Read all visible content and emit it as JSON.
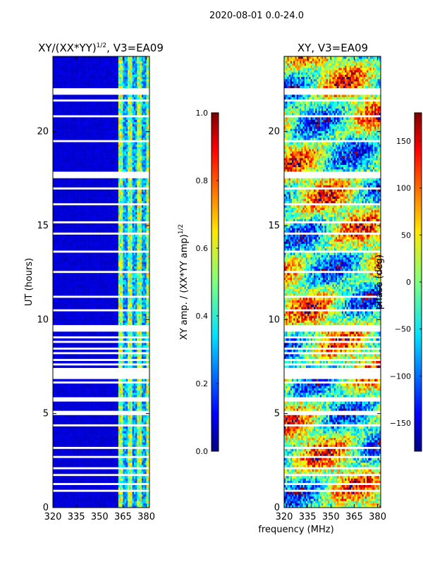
{
  "suptitle": "2020-08-01 0.0-24.0",
  "colormap": "jet",
  "chart_data": [
    {
      "type": "heatmap",
      "title": "XY/(XX*YY)",
      "title_superscript": "1/2",
      "title_suffix": ", V3=EA09",
      "xlabel": "",
      "ylabel": "UT (hours)",
      "xlim": [
        320,
        382
      ],
      "ylim": [
        0,
        24
      ],
      "xticks": [
        320,
        335,
        350,
        365,
        380
      ],
      "yticks": [
        0,
        5,
        10,
        15,
        20
      ],
      "value_description": "normalized XY amplitude; mostly low (~0.05) below 362 MHz, elevated (~0.2-0.7) in banded channels 362-382 MHz",
      "colorbar": {
        "label": "XY amp. / (XX*YY amp)",
        "label_superscript": "1/2",
        "range": [
          0.0,
          1.0
        ],
        "ticks": [
          "0.0",
          "0.2",
          "0.4",
          "0.6",
          "0.8",
          "1.0"
        ]
      }
    },
    {
      "type": "heatmap",
      "title": "XY, V3=EA09",
      "xlabel": "frequency (MHz)",
      "ylabel": "",
      "xlim": [
        320,
        382
      ],
      "ylim": [
        0,
        24
      ],
      "xticks": [
        320,
        335,
        350,
        365,
        380
      ],
      "yticks": [
        0,
        5,
        10,
        15,
        20
      ],
      "value_description": "XY phase in degrees, spanning -180 to 180 with noisy time-frequency structure",
      "colorbar": {
        "label": "phase (deg)",
        "range": [
          -180,
          180
        ],
        "ticks": [
          "−150",
          "−100",
          "−50",
          "0",
          "50",
          "100",
          "150"
        ]
      }
    }
  ],
  "flagged_time_ranges_hours": [
    [
      0.85,
      0.95
    ],
    [
      1.2,
      1.3
    ],
    [
      1.65,
      1.75
    ],
    [
      2.1,
      2.2
    ],
    [
      2.6,
      2.7
    ],
    [
      3.1,
      3.2
    ],
    [
      3.45,
      3.52
    ],
    [
      4.3,
      4.45
    ],
    [
      4.95,
      5.15
    ],
    [
      5.65,
      5.9
    ],
    [
      6.6,
      6.75
    ],
    [
      6.9,
      7.4
    ],
    [
      7.55,
      7.65
    ],
    [
      7.85,
      7.95
    ],
    [
      8.15,
      8.25
    ],
    [
      8.45,
      8.55
    ],
    [
      8.75,
      8.85
    ],
    [
      9.05,
      9.15
    ],
    [
      9.35,
      9.7
    ],
    [
      10.5,
      10.6
    ],
    [
      11.2,
      11.3
    ],
    [
      12.5,
      12.6
    ],
    [
      13.6,
      13.7
    ],
    [
      14.5,
      14.6
    ],
    [
      15.1,
      15.2
    ],
    [
      16.1,
      16.2
    ],
    [
      16.9,
      17.0
    ],
    [
      17.55,
      17.85
    ],
    [
      19.4,
      19.5
    ],
    [
      20.35,
      20.45
    ],
    [
      20.75,
      20.85
    ],
    [
      21.6,
      21.7
    ],
    [
      21.95,
      22.3
    ]
  ]
}
